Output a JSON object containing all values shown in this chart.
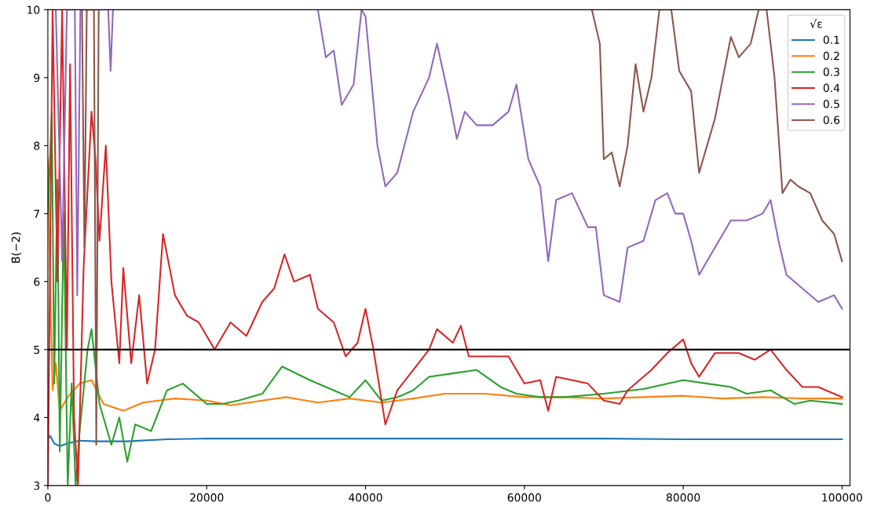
{
  "chart_data": {
    "type": "line",
    "ylabel": "B̄(−2)",
    "legend_title": "√ε",
    "legend": "top right",
    "grid": false,
    "line_style": "solid",
    "marker": "none",
    "xlim": [
      0,
      101000
    ],
    "ylim": [
      3,
      10
    ],
    "xticks": [
      0,
      20000,
      40000,
      60000,
      80000,
      100000
    ],
    "yticks": [
      3,
      4,
      5,
      6,
      7,
      8,
      9,
      10
    ],
    "ref_lines": [
      {
        "axis": "y",
        "value": 5,
        "color": "#000000",
        "line_style": "solid"
      }
    ],
    "series": [
      {
        "name": "0.1",
        "color": "#1f77b4",
        "x": [
          0,
          300,
          800,
          1500,
          2500,
          4000,
          6000,
          10000,
          15000,
          20000,
          30000,
          40000,
          50000,
          60000,
          70000,
          80000,
          90000,
          100000
        ],
        "values": [
          3.68,
          3.73,
          3.62,
          3.58,
          3.62,
          3.66,
          3.65,
          3.65,
          3.68,
          3.69,
          3.69,
          3.69,
          3.69,
          3.69,
          3.69,
          3.68,
          3.68,
          3.68
        ]
      },
      {
        "name": "0.2",
        "color": "#ff7f0e",
        "x": [
          0,
          300,
          600,
          1000,
          1500,
          2500,
          4000,
          5500,
          7000,
          9500,
          12000,
          16000,
          20000,
          23000,
          27000,
          30000,
          34000,
          38000,
          42000,
          46000,
          50000,
          55000,
          60000,
          65000,
          70000,
          75000,
          80000,
          85000,
          90000,
          95000,
          100000
        ],
        "values": [
          7.8,
          5.9,
          4.4,
          4.8,
          4.1,
          4.3,
          4.5,
          4.55,
          4.2,
          4.1,
          4.22,
          4.28,
          4.25,
          4.18,
          4.25,
          4.3,
          4.22,
          4.28,
          4.22,
          4.28,
          4.35,
          4.35,
          4.3,
          4.3,
          4.28,
          4.3,
          4.32,
          4.28,
          4.3,
          4.28,
          4.28
        ]
      },
      {
        "name": "0.3",
        "color": "#2ca02c",
        "x": [
          0,
          500,
          800,
          1200,
          1500,
          2000,
          2500,
          3000,
          3500,
          4000,
          5000,
          5500,
          6500,
          8000,
          9000,
          10000,
          11000,
          13000,
          15000,
          17000,
          20000,
          22000,
          24000,
          27000,
          29500,
          33000,
          36000,
          38000,
          40000,
          42000,
          44000,
          46000,
          48000,
          51000,
          54000,
          57000,
          59000,
          62000,
          65000,
          70000,
          75000,
          80000,
          83000,
          86000,
          88000,
          91000,
          94000,
          96000,
          100000
        ],
        "values": [
          7.0,
          8.5,
          4.5,
          7.5,
          3.5,
          7.0,
          3.0,
          4.5,
          3.0,
          3.8,
          5.0,
          5.3,
          4.2,
          3.6,
          4.0,
          3.35,
          3.9,
          3.8,
          4.4,
          4.5,
          4.2,
          4.2,
          4.25,
          4.35,
          4.75,
          4.55,
          4.4,
          4.3,
          4.55,
          4.25,
          4.3,
          4.4,
          4.6,
          4.65,
          4.7,
          4.45,
          4.35,
          4.3,
          4.3,
          4.35,
          4.42,
          4.55,
          4.5,
          4.45,
          4.35,
          4.4,
          4.2,
          4.25,
          4.2
        ]
      },
      {
        "name": "0.4",
        "color": "#d62728",
        "x": [
          0,
          600,
          1200,
          1800,
          2400,
          2800,
          3300,
          3800,
          4500,
          5500,
          6000,
          6500,
          7300,
          8000,
          9000,
          9500,
          10500,
          11500,
          12500,
          13500,
          14500,
          16000,
          17500,
          19000,
          21000,
          23000,
          25000,
          27000,
          28500,
          29800,
          31000,
          33000,
          34000,
          36000,
          37500,
          39000,
          40000,
          41000,
          42500,
          44000,
          46000,
          48000,
          49000,
          51000,
          52000,
          53000,
          56000,
          58000,
          60000,
          62000,
          63000,
          64000,
          66000,
          68000,
          70000,
          72000,
          73000,
          76000,
          78000,
          80000,
          81000,
          82000,
          84000,
          87000,
          89000,
          91000,
          93000,
          95000,
          97000,
          100000
        ],
        "values": [
          3.0,
          10.0,
          6.0,
          10.0,
          5.0,
          9.2,
          4.0,
          3.0,
          6.2,
          8.5,
          7.8,
          6.6,
          8.0,
          6.0,
          4.8,
          6.2,
          4.8,
          5.8,
          4.5,
          5.0,
          6.7,
          5.8,
          5.5,
          5.4,
          5.0,
          5.4,
          5.2,
          5.7,
          5.9,
          6.4,
          6.0,
          6.1,
          5.6,
          5.4,
          4.9,
          5.1,
          5.6,
          5.0,
          3.9,
          4.4,
          4.7,
          5.0,
          5.3,
          5.1,
          5.35,
          4.9,
          4.9,
          4.9,
          4.5,
          4.55,
          4.1,
          4.6,
          4.55,
          4.5,
          4.25,
          4.2,
          4.4,
          4.7,
          4.95,
          5.15,
          4.8,
          4.6,
          4.95,
          4.95,
          4.85,
          5.0,
          4.7,
          4.45,
          4.45,
          4.3
        ]
      },
      {
        "name": "0.5",
        "color": "#9467bd",
        "x": [
          1000,
          1800,
          2400,
          3400,
          3700,
          4100,
          7600,
          7900,
          8200,
          20000,
          34000,
          35000,
          36000,
          37000,
          38500,
          39500,
          40000,
          41500,
          42500,
          44000,
          46000,
          48000,
          49000,
          50500,
          51500,
          52500,
          54000,
          56000,
          58000,
          59000,
          60500,
          62000,
          63000,
          64000,
          66000,
          68000,
          69000,
          70000,
          72000,
          73000,
          75000,
          76500,
          78000,
          79000,
          80000,
          81000,
          82000,
          84000,
          86000,
          88000,
          90000,
          91000,
          92000,
          93000,
          95000,
          97000,
          99000,
          100000
        ],
        "values": [
          10.0,
          6.3,
          10.0,
          10.0,
          5.8,
          10.0,
          10.0,
          9.1,
          10.0,
          null,
          10.0,
          9.3,
          9.4,
          8.6,
          8.9,
          10.0,
          9.9,
          8.0,
          7.4,
          7.6,
          8.5,
          9.0,
          9.5,
          8.7,
          8.1,
          8.5,
          8.3,
          8.3,
          8.5,
          8.9,
          7.8,
          7.4,
          6.3,
          7.2,
          7.3,
          6.8,
          6.8,
          5.8,
          5.7,
          6.5,
          6.6,
          7.2,
          7.3,
          7.0,
          7.0,
          6.6,
          6.1,
          6.5,
          6.9,
          6.9,
          7.0,
          7.2,
          6.6,
          6.1,
          5.9,
          5.7,
          5.8,
          5.6
        ]
      },
      {
        "name": "0.6",
        "color": "#8c564b",
        "x": [
          4300,
          4600,
          4900,
          5800,
          6100,
          6400,
          30000,
          68500,
          69500,
          70000,
          71000,
          72000,
          73000,
          74000,
          75000,
          76000,
          77000,
          78500,
          79500,
          81000,
          82000,
          83000,
          84000,
          85000,
          86000,
          87000,
          88500,
          89500,
          90500,
          91500,
          92500,
          93500,
          94500,
          96000,
          97500,
          99000,
          100000
        ],
        "values": [
          10.0,
          6.5,
          10.0,
          10.0,
          3.6,
          10.0,
          null,
          10.0,
          9.5,
          7.8,
          7.9,
          7.4,
          8.0,
          9.2,
          8.5,
          9.0,
          10.0,
          10.0,
          9.1,
          8.8,
          7.6,
          8.0,
          8.4,
          9.0,
          9.6,
          9.3,
          9.5,
          10.0,
          10.0,
          9.0,
          7.3,
          7.5,
          7.4,
          7.3,
          6.9,
          6.7,
          6.3
        ]
      }
    ]
  }
}
